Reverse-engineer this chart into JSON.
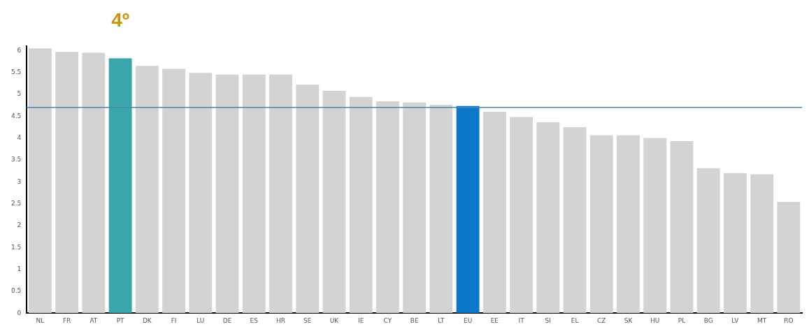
{
  "chart_data": {
    "type": "bar",
    "categories": [
      "NL",
      "FR",
      "AT",
      "PT",
      "DK",
      "FI",
      "LU",
      "DE",
      "ES",
      "HR",
      "SE",
      "UK",
      "IE",
      "CY",
      "BE",
      "LT",
      "EU",
      "EE",
      "IT",
      "SI",
      "EL",
      "CZ",
      "SK",
      "HU",
      "PL",
      "BG",
      "LV",
      "MT",
      "RO"
    ],
    "values": [
      6.05,
      5.97,
      5.95,
      5.82,
      5.65,
      5.58,
      5.49,
      5.45,
      5.45,
      5.45,
      5.22,
      5.08,
      4.94,
      4.84,
      4.81,
      4.76,
      4.73,
      4.6,
      4.48,
      4.36,
      4.25,
      4.06,
      4.06,
      4.0,
      3.93,
      3.31,
      3.2,
      3.17,
      2.54
    ],
    "colors": [
      "#d3d3d3",
      "#d3d3d3",
      "#d3d3d3",
      "#3aa5aa",
      "#d3d3d3",
      "#d3d3d3",
      "#d3d3d3",
      "#d3d3d3",
      "#d3d3d3",
      "#d3d3d3",
      "#d3d3d3",
      "#d3d3d3",
      "#d3d3d3",
      "#d3d3d3",
      "#d3d3d3",
      "#d3d3d3",
      "#0a77c8",
      "#d3d3d3",
      "#d3d3d3",
      "#d3d3d3",
      "#d3d3d3",
      "#d3d3d3",
      "#d3d3d3",
      "#d3d3d3",
      "#d3d3d3",
      "#d3d3d3",
      "#d3d3d3",
      "#d3d3d3",
      "#d3d3d3"
    ],
    "ylim": [
      0,
      6.1
    ],
    "yticks": [
      0,
      {
        "value": 0.5,
        "label": "0.5"
      },
      1,
      {
        "value": 1.5,
        "label": "1.5"
      },
      2,
      {
        "value": 2.5,
        "label": "2.5"
      },
      3,
      {
        "value": 3.5,
        "label": "3.5"
      },
      4,
      {
        "value": 4.5,
        "label": "4.5"
      },
      5,
      {
        "value": 5.5,
        "label": "5.5"
      },
      6
    ],
    "ref_lines": [
      {
        "axis": "y",
        "value": 4.7,
        "color": "#4a86b0"
      }
    ],
    "annotations": [
      "4º"
    ],
    "grid": false,
    "legend": false
  }
}
